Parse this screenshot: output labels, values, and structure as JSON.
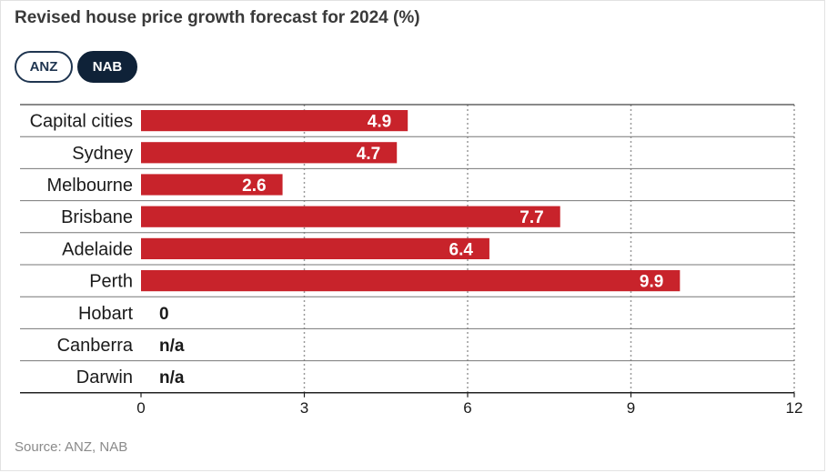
{
  "title": "Revised house price growth forecast for 2024 (%)",
  "tabs": [
    {
      "label": "ANZ",
      "active": false
    },
    {
      "label": "NAB",
      "active": true
    }
  ],
  "source": "Source: ANZ, NAB",
  "colors": {
    "bar": "#c8232b",
    "grid": "#9a9a9a",
    "text": "#1a1a1a",
    "tab_active_bg": "#0f2238"
  },
  "chart_data": {
    "type": "bar",
    "orientation": "horizontal",
    "categories": [
      "Capital cities",
      "Sydney",
      "Melbourne",
      "Brisbane",
      "Adelaide",
      "Perth",
      "Hobart",
      "Canberra",
      "Darwin"
    ],
    "values": [
      4.9,
      4.7,
      2.6,
      7.7,
      6.4,
      9.9,
      0,
      null,
      null
    ],
    "value_labels": [
      "4.9",
      "4.7",
      "2.6",
      "7.7",
      "6.4",
      "9.9",
      "0",
      "n/a",
      "n/a"
    ],
    "xlim": [
      0,
      12
    ],
    "xticks": [
      "0",
      "3",
      "6",
      "9",
      "12"
    ],
    "grid": true
  }
}
